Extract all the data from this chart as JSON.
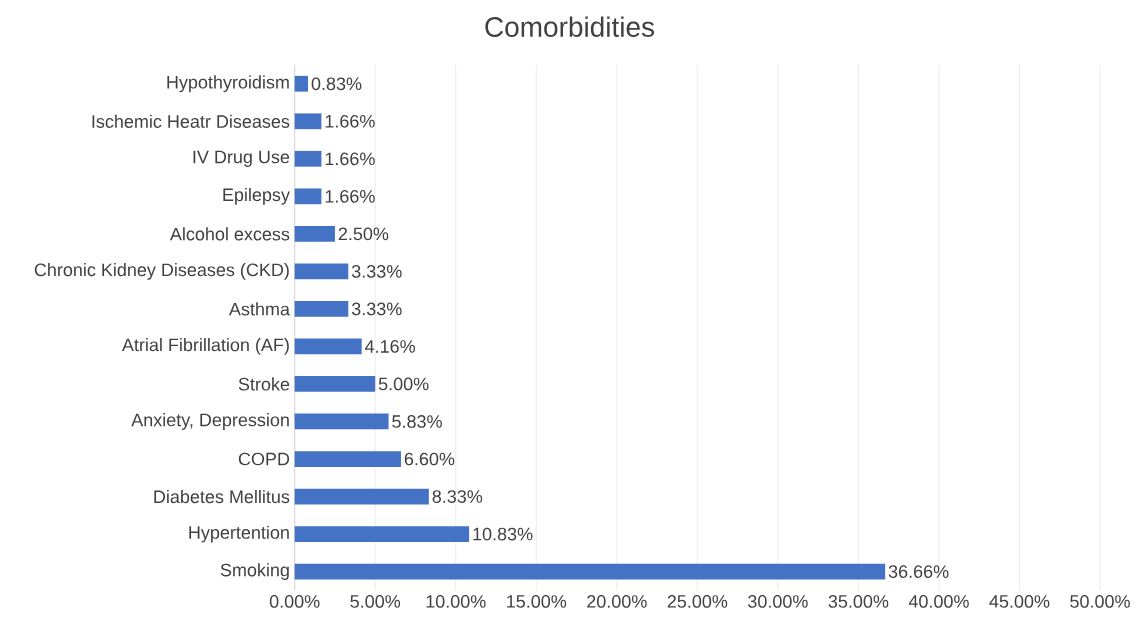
{
  "chart_data": {
    "type": "bar",
    "orientation": "horizontal",
    "title": "Comorbidities",
    "categories": [
      "Hypothyroidism",
      "Ischemic Heatr Diseases",
      "IV Drug Use",
      "Epilepsy",
      "Alcohol excess",
      "Chronic Kidney Diseases (CKD)",
      "Asthma",
      "Atrial Fibrillation (AF)",
      "Stroke",
      "Anxiety, Depression",
      "COPD",
      "Diabetes Mellitus",
      "Hypertention",
      "Smoking"
    ],
    "values": [
      0.83,
      1.66,
      1.66,
      1.66,
      2.5,
      3.33,
      3.33,
      4.16,
      5.0,
      5.83,
      6.6,
      8.33,
      10.83,
      36.66
    ],
    "value_labels": [
      "0.83%",
      "1.66%",
      "1.66%",
      "1.66%",
      "2.50%",
      "3.33%",
      "3.33%",
      "4.16%",
      "5.00%",
      "5.83%",
      "6.60%",
      "8.33%",
      "10.83%",
      "36.66%"
    ],
    "color": "#4472c4",
    "xlim": [
      0,
      50
    ],
    "xticks": [
      {
        "value": 0,
        "label": "0.00%"
      },
      {
        "value": 5,
        "label": "5.00%"
      },
      {
        "value": 10,
        "label": "10.00%"
      },
      {
        "value": 15,
        "label": "15.00%"
      },
      {
        "value": 20,
        "label": "20.00%"
      },
      {
        "value": 25,
        "label": "25.00%"
      },
      {
        "value": 30,
        "label": "30.00%"
      },
      {
        "value": 35,
        "label": "35.00%"
      },
      {
        "value": 40,
        "label": "40.00%"
      },
      {
        "value": 45,
        "label": "45.00%"
      },
      {
        "value": 50,
        "label": "50.00%"
      }
    ],
    "grid": "x"
  }
}
